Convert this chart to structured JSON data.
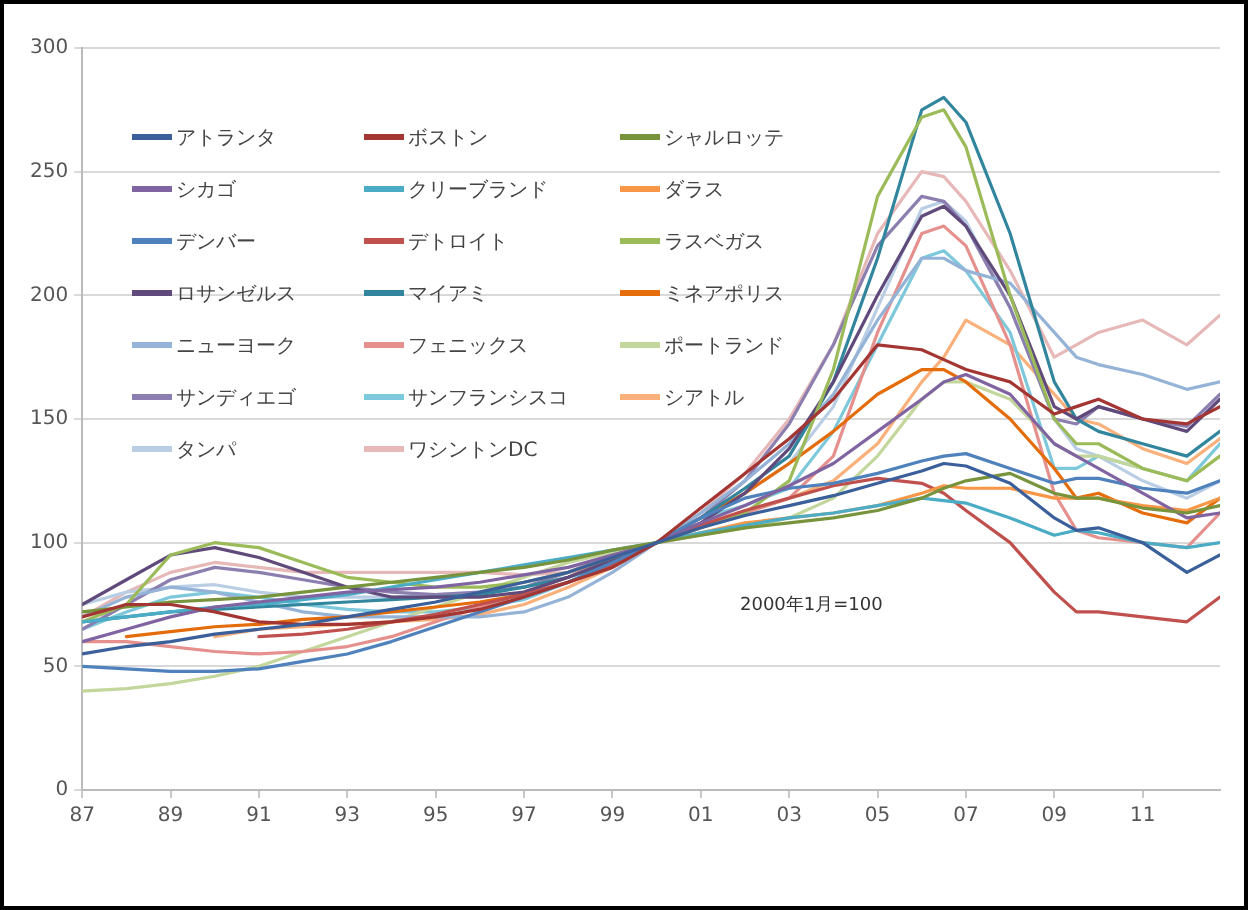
{
  "chart_data": {
    "type": "line",
    "annotations": [
      "2000年1月=100"
    ],
    "x": [
      1987,
      1988,
      1989,
      1990,
      1991,
      1992,
      1993,
      1994,
      1995,
      1996,
      1997,
      1998,
      1999,
      2000,
      2001,
      2002,
      2003,
      2004,
      2005,
      2006,
      2006.5,
      2007,
      2008,
      2009,
      2009.5,
      2010,
      2011,
      2012,
      2012.75
    ],
    "xlim": [
      1987,
      2012.75
    ],
    "xticks": [
      {
        "value": 1987,
        "label": "87"
      },
      {
        "value": 1989,
        "label": "89"
      },
      {
        "value": 1991,
        "label": "91"
      },
      {
        "value": 1993,
        "label": "93"
      },
      {
        "value": 1995,
        "label": "95"
      },
      {
        "value": 1997,
        "label": "97"
      },
      {
        "value": 1999,
        "label": "99"
      },
      {
        "value": 2001,
        "label": "01"
      },
      {
        "value": 2003,
        "label": "03"
      },
      {
        "value": 2005,
        "label": "05"
      },
      {
        "value": 2007,
        "label": "07"
      },
      {
        "value": 2009,
        "label": "09"
      },
      {
        "value": 2011,
        "label": "11"
      }
    ],
    "ylim": [
      0,
      300
    ],
    "yticks": [
      0,
      50,
      100,
      150,
      200,
      250,
      300
    ],
    "grid": "y",
    "legend": "top left",
    "marker": "none",
    "line_style": "solid",
    "series": [
      {
        "name": "アトランタ",
        "color": "#3a5f9a",
        "values": [
          55,
          58,
          60,
          63,
          65,
          67,
          70,
          73,
          76,
          80,
          84,
          88,
          94,
          100,
          106,
          111,
          115,
          119,
          124,
          129,
          132,
          131,
          124,
          110,
          105,
          106,
          100,
          88,
          95
        ]
      },
      {
        "name": "ボストン",
        "color": "#a33633",
        "values": [
          70,
          75,
          75,
          72,
          68,
          67,
          67,
          68,
          70,
          73,
          78,
          84,
          90,
          100,
          114,
          128,
          142,
          158,
          180,
          178,
          174,
          170,
          165,
          152,
          155,
          158,
          150,
          148,
          155
        ]
      },
      {
        "name": "シャルロッテ",
        "color": "#77933c",
        "values": [
          72,
          74,
          76,
          77,
          78,
          80,
          82,
          84,
          86,
          88,
          90,
          93,
          97,
          100,
          103,
          106,
          108,
          110,
          113,
          118,
          122,
          125,
          128,
          120,
          118,
          118,
          114,
          112,
          115
        ]
      },
      {
        "name": "シカゴ",
        "color": "#8064a2",
        "values": [
          60,
          65,
          70,
          74,
          76,
          78,
          80,
          81,
          82,
          84,
          87,
          90,
          95,
          100,
          108,
          115,
          123,
          132,
          145,
          158,
          165,
          168,
          160,
          140,
          135,
          130,
          120,
          110,
          112
        ]
      },
      {
        "name": "クリーブランド",
        "color": "#4bacc6",
        "values": [
          68,
          70,
          72,
          74,
          75,
          77,
          79,
          82,
          85,
          88,
          91,
          94,
          97,
          100,
          104,
          107,
          110,
          112,
          115,
          118,
          117,
          116,
          110,
          103,
          105,
          104,
          100,
          98,
          100
        ]
      },
      {
        "name": "ダラス",
        "color": "#f79646",
        "values": [
          null,
          null,
          null,
          null,
          null,
          null,
          null,
          null,
          null,
          null,
          null,
          null,
          null,
          100,
          104,
          108,
          110,
          112,
          115,
          120,
          123,
          122,
          122,
          118,
          118,
          118,
          115,
          113,
          118
        ]
      },
      {
        "name": "デンバー",
        "color": "#4f81bd",
        "values": [
          50,
          49,
          48,
          48,
          49,
          52,
          55,
          60,
          66,
          72,
          78,
          84,
          92,
          100,
          110,
          118,
          122,
          124,
          128,
          133,
          135,
          136,
          130,
          124,
          126,
          126,
          122,
          120,
          125
        ]
      },
      {
        "name": "デトロイト",
        "color": "#c0504d",
        "values": [
          null,
          null,
          null,
          null,
          62,
          63,
          65,
          68,
          71,
          75,
          79,
          84,
          91,
          100,
          107,
          113,
          118,
          123,
          126,
          124,
          120,
          113,
          100,
          80,
          72,
          72,
          70,
          68,
          78
        ]
      },
      {
        "name": "ラスベガス",
        "color": "#9bbb59",
        "values": [
          68,
          75,
          95,
          100,
          98,
          92,
          86,
          84,
          82,
          82,
          84,
          88,
          94,
          100,
          106,
          112,
          125,
          170,
          240,
          272,
          275,
          260,
          200,
          150,
          140,
          140,
          130,
          125,
          135
        ]
      },
      {
        "name": "ロサンゼルス",
        "color": "#604a7b",
        "values": [
          75,
          85,
          95,
          98,
          94,
          88,
          82,
          78,
          78,
          78,
          80,
          86,
          93,
          100,
          108,
          120,
          138,
          165,
          200,
          232,
          236,
          228,
          200,
          155,
          150,
          155,
          150,
          145,
          158
        ]
      },
      {
        "name": "マイアミ",
        "color": "#31859c",
        "values": [
          68,
          70,
          72,
          73,
          74,
          75,
          76,
          77,
          78,
          79,
          82,
          86,
          92,
          100,
          110,
          122,
          135,
          165,
          215,
          275,
          280,
          270,
          225,
          165,
          150,
          145,
          140,
          135,
          145
        ]
      },
      {
        "name": "ミネアポリス",
        "color": "#e46c0a",
        "values": [
          null,
          62,
          64,
          66,
          67,
          69,
          70,
          72,
          74,
          76,
          79,
          84,
          91,
          100,
          110,
          120,
          132,
          145,
          160,
          170,
          170,
          165,
          150,
          130,
          118,
          120,
          112,
          108,
          118
        ]
      },
      {
        "name": "ニューヨーク",
        "color": "#95b3d7",
        "values": [
          70,
          78,
          82,
          80,
          76,
          72,
          70,
          70,
          70,
          70,
          72,
          78,
          88,
          100,
          112,
          125,
          140,
          160,
          190,
          215,
          215,
          210,
          205,
          185,
          175,
          172,
          168,
          162,
          165
        ]
      },
      {
        "name": "フェニックス",
        "color": "#e6908e",
        "values": [
          60,
          60,
          58,
          56,
          55,
          56,
          58,
          62,
          68,
          74,
          80,
          86,
          94,
          100,
          106,
          112,
          118,
          135,
          185,
          225,
          228,
          220,
          180,
          120,
          105,
          102,
          100,
          98,
          112
        ]
      },
      {
        "name": "ポートランド",
        "color": "#c3d69b",
        "values": [
          40,
          41,
          43,
          46,
          50,
          56,
          62,
          68,
          74,
          80,
          86,
          92,
          96,
          100,
          103,
          106,
          110,
          118,
          135,
          158,
          165,
          165,
          158,
          140,
          135,
          135,
          130,
          125,
          135
        ]
      },
      {
        "name": "サンディエゴ",
        "color": "#8c7fb0",
        "values": [
          65,
          75,
          85,
          90,
          88,
          85,
          82,
          80,
          79,
          80,
          82,
          88,
          95,
          100,
          110,
          125,
          148,
          180,
          220,
          240,
          238,
          228,
          195,
          150,
          148,
          155,
          150,
          147,
          160
        ]
      },
      {
        "name": "サンフランシスコ",
        "color": "#7ec8dc",
        "values": [
          65,
          72,
          78,
          80,
          78,
          75,
          73,
          72,
          72,
          74,
          77,
          84,
          92,
          100,
          110,
          115,
          122,
          145,
          180,
          215,
          218,
          210,
          185,
          130,
          130,
          135,
          130,
          125,
          140
        ]
      },
      {
        "name": "シアトル",
        "color": "#fab07a",
        "values": [
          null,
          null,
          null,
          62,
          65,
          66,
          67,
          68,
          69,
          71,
          75,
          82,
          90,
          100,
          108,
          112,
          118,
          125,
          140,
          165,
          175,
          190,
          180,
          160,
          150,
          148,
          138,
          132,
          142
        ]
      },
      {
        "name": "タンパ",
        "color": "#b9cde5",
        "values": [
          75,
          80,
          82,
          83,
          80,
          78,
          78,
          78,
          79,
          80,
          82,
          86,
          92,
          100,
          110,
          120,
          132,
          155,
          195,
          235,
          238,
          230,
          195,
          150,
          138,
          135,
          125,
          118,
          125
        ]
      },
      {
        "name": "ワシントンDC",
        "color": "#e6b9b8",
        "values": [
          70,
          80,
          88,
          92,
          90,
          88,
          88,
          88,
          88,
          88,
          87,
          88,
          92,
          100,
          112,
          128,
          150,
          180,
          225,
          250,
          248,
          238,
          210,
          175,
          180,
          185,
          190,
          180,
          192
        ]
      }
    ]
  }
}
